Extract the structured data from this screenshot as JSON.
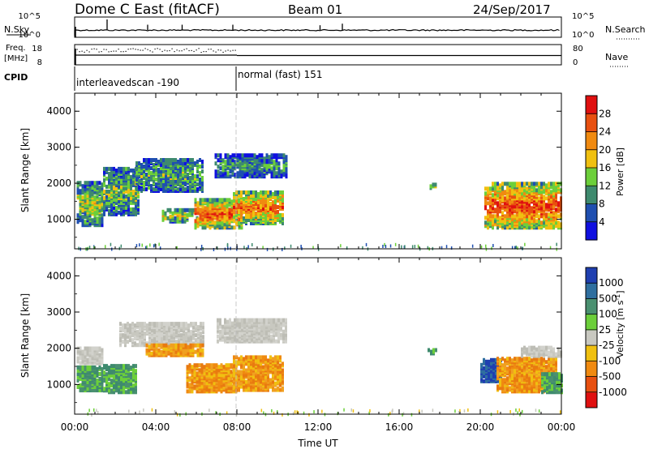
{
  "header": {
    "station": "Dome C East (fitACF)",
    "beam": "Beam 01",
    "date": "24/Sep/2017"
  },
  "status_panel": {
    "nsky_label": "N.Sky",
    "nsky_ticks": [
      "10^5",
      "10^0"
    ],
    "nsearch_label": "N.Search",
    "nsearch_ticks": [
      "10^5",
      "10^0"
    ],
    "freq_label_1": "Freq.",
    "freq_label_2": "[MHz]",
    "freq_ticks": [
      "18",
      "8"
    ],
    "nave_label": "Nave",
    "nave_ticks": [
      "80",
      "0"
    ],
    "cpid_label": "CPID",
    "cpid_segments": [
      {
        "label": "interleavedscan -190",
        "start_hour": 0
      },
      {
        "label": "normal (fast) 151",
        "start_hour": 8
      }
    ],
    "nsky_spikes": [
      {
        "hour": 1.6,
        "level": 1.0
      },
      {
        "hour": 3.6,
        "level": 0.5
      },
      {
        "hour": 5.3,
        "level": 0.5
      },
      {
        "hour": 7.8,
        "level": 0.5
      },
      {
        "hour": 12.1,
        "level": 0.45
      },
      {
        "hour": 13.2,
        "level": 0.6
      }
    ]
  },
  "chart_data": [
    {
      "type": "heatmap",
      "name": "power",
      "xlabel": "",
      "ylabel": "Slant Range [km]",
      "x_range_hours": [
        0,
        24
      ],
      "ylim": [
        180,
        4500
      ],
      "yticks": [
        "1000",
        "2000",
        "3000",
        "4000"
      ],
      "colorbar_label": "Power [dB]",
      "colorbar_ticks": [
        "4",
        "8",
        "12",
        "16",
        "20",
        "24",
        "28"
      ],
      "colors": [
        "#1010e0",
        "#1f4fb0",
        "#3e8a6e",
        "#6ccf3a",
        "#f0c010",
        "#f08a10",
        "#e85010",
        "#e01010"
      ],
      "regions": [
        {
          "h0": 0.1,
          "h1": 1.4,
          "r0": 850,
          "r1": 2050,
          "level": 0.45
        },
        {
          "h0": 1.4,
          "h1": 3.2,
          "r0": 1150,
          "r1": 2450,
          "level": 0.4
        },
        {
          "h0": 3.0,
          "h1": 6.3,
          "r0": 1800,
          "r1": 2700,
          "level": 0.35
        },
        {
          "h0": 4.3,
          "h1": 6.0,
          "r0": 950,
          "r1": 1300,
          "level": 0.5
        },
        {
          "h0": 5.9,
          "h1": 8.2,
          "r0": 780,
          "r1": 1550,
          "level": 0.75
        },
        {
          "h0": 6.9,
          "h1": 10.4,
          "r0": 2200,
          "r1": 2800,
          "level": 0.3
        },
        {
          "h0": 7.8,
          "h1": 10.3,
          "r0": 900,
          "r1": 1800,
          "level": 0.7
        },
        {
          "h0": 17.5,
          "h1": 17.8,
          "r0": 1880,
          "r1": 1980,
          "level": 0.4
        },
        {
          "h0": 20.2,
          "h1": 24.0,
          "r0": 780,
          "r1": 2000,
          "level": 0.8
        }
      ]
    },
    {
      "type": "heatmap",
      "name": "velocity",
      "xlabel": "Time UT",
      "ylabel": "Slant Range [km]",
      "x_range_hours": [
        0,
        24
      ],
      "xticks": [
        "00:00",
        "04:00",
        "08:00",
        "12:00",
        "16:00",
        "20:00",
        "00:00"
      ],
      "ylim": [
        180,
        4500
      ],
      "yticks": [
        "1000",
        "2000",
        "3000",
        "4000"
      ],
      "colorbar_label": "Velocity [m s",
      "colorbar_ticks": [
        "1000",
        "500",
        "100",
        "25",
        "-25",
        "-100",
        "-500",
        "-1000"
      ],
      "colors": [
        "#1f3fb0",
        "#2f6f9f",
        "#4a9070",
        "#6ccf3a",
        "#c8c8c0",
        "#f0c010",
        "#f08a10",
        "#e85010",
        "#e01010"
      ],
      "regions": [
        {
          "h0": 0.1,
          "h1": 1.4,
          "r0": 850,
          "r1": 1500,
          "cls": "green"
        },
        {
          "h0": 0.1,
          "h1": 1.4,
          "r0": 1600,
          "r1": 2050,
          "cls": "grey"
        },
        {
          "h0": 1.4,
          "h1": 3.0,
          "r0": 800,
          "r1": 1550,
          "cls": "green"
        },
        {
          "h0": 2.2,
          "h1": 6.3,
          "r0": 2100,
          "r1": 2700,
          "cls": "grey"
        },
        {
          "h0": 3.5,
          "h1": 6.3,
          "r0": 1820,
          "r1": 2100,
          "cls": "orange"
        },
        {
          "h0": 5.5,
          "h1": 8.0,
          "r0": 820,
          "r1": 1550,
          "cls": "orange"
        },
        {
          "h0": 7.0,
          "h1": 10.4,
          "r0": 2200,
          "r1": 2800,
          "cls": "grey"
        },
        {
          "h0": 7.8,
          "h1": 10.3,
          "r0": 860,
          "r1": 1780,
          "cls": "orange"
        },
        {
          "h0": 20.0,
          "h1": 21.0,
          "r0": 1100,
          "r1": 1700,
          "cls": "blue"
        },
        {
          "h0": 20.8,
          "h1": 23.8,
          "r0": 820,
          "r1": 1750,
          "cls": "orange"
        },
        {
          "h0": 22.0,
          "h1": 24.0,
          "r0": 1800,
          "r1": 2050,
          "cls": "grey"
        },
        {
          "h0": 23.0,
          "h1": 24.0,
          "r0": 800,
          "r1": 1300,
          "cls": "green"
        },
        {
          "h0": 17.4,
          "h1": 17.8,
          "r0": 1870,
          "r1": 1990,
          "cls": "green"
        }
      ]
    }
  ]
}
